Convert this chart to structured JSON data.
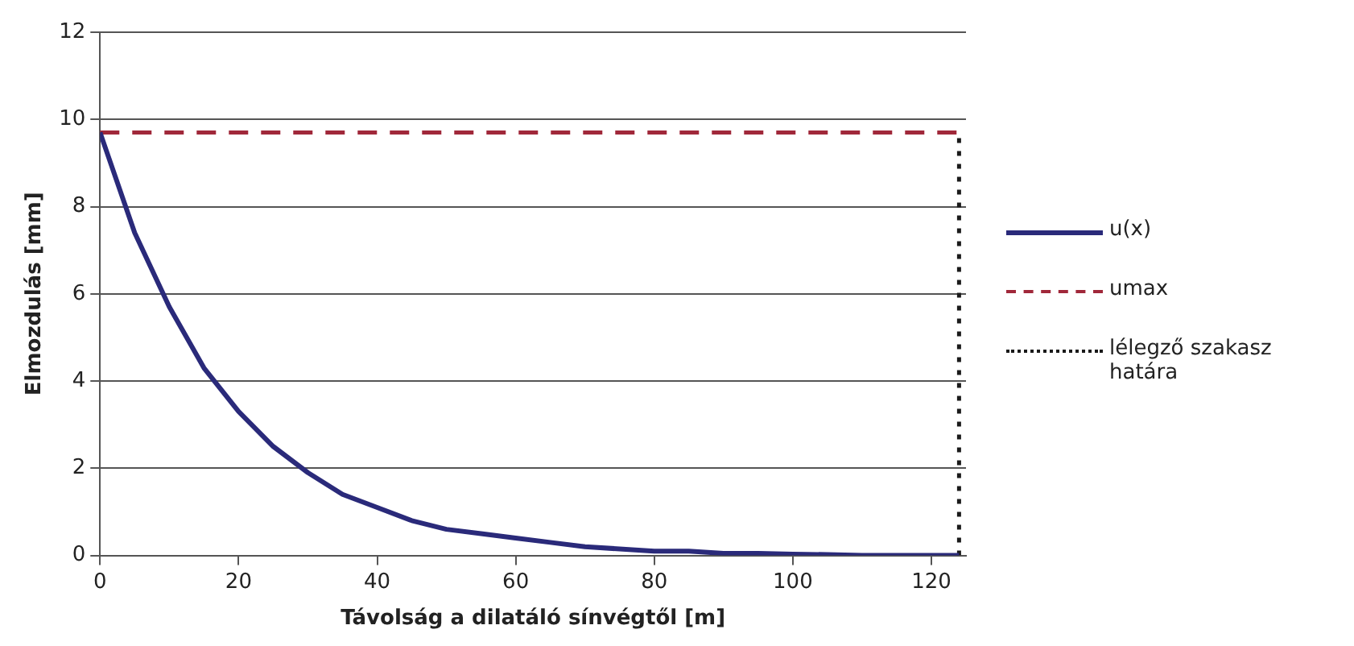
{
  "chart_data": {
    "type": "line",
    "xlabel": "Távolság a dilatáló sínvégtől [m]",
    "ylabel": "Elmozdulás [mm]",
    "xlim": [
      0,
      125
    ],
    "xticks": [
      0,
      20,
      40,
      60,
      80,
      100,
      120
    ],
    "ylim": [
      0,
      12
    ],
    "yticks": [
      0,
      2,
      4,
      6,
      8,
      10,
      12
    ],
    "grid": "y",
    "legend": "right",
    "marker": "none",
    "series": [
      {
        "name": "u(x)",
        "color": "#2a2a7a",
        "line_style": "solid",
        "x": [
          0,
          5,
          10,
          15,
          20,
          25,
          30,
          35,
          40,
          45,
          50,
          55,
          60,
          65,
          70,
          75,
          80,
          85,
          90,
          95,
          100,
          105,
          110,
          124
        ],
        "values": [
          9.7,
          7.4,
          5.7,
          4.3,
          3.3,
          2.5,
          1.9,
          1.4,
          1.1,
          0.8,
          0.6,
          0.5,
          0.4,
          0.3,
          0.2,
          0.15,
          0.1,
          0.1,
          0.05,
          0.05,
          0.03,
          0.02,
          0,
          0
        ]
      },
      {
        "name": "umax",
        "color": "#a0283a",
        "line_style": "dashed",
        "x": [
          0,
          125
        ],
        "values": [
          9.7,
          9.7
        ]
      },
      {
        "name": "lélegző szakasz határa",
        "color": "#1a1a1a",
        "line_style": "dotted",
        "x": [
          124,
          124
        ],
        "values": [
          0,
          9.7
        ]
      }
    ]
  }
}
